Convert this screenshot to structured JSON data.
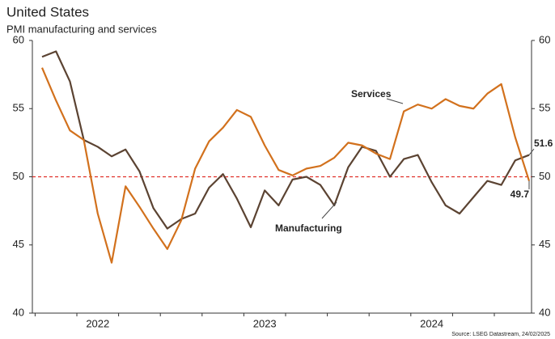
{
  "chart_data": {
    "type": "line",
    "title": "United States",
    "subtitle": "PMI manufacturing and services",
    "source": "Source: LSEG Datastream, 24/02/2025",
    "categories": [
      null,
      null,
      null,
      null,
      "2022",
      null,
      null,
      null,
      null,
      null,
      null,
      null,
      null,
      null,
      null,
      null,
      "2023",
      null,
      null,
      null,
      null,
      null,
      null,
      null,
      null,
      null,
      null,
      null,
      "2024",
      null,
      null,
      null,
      null,
      null,
      null,
      null
    ],
    "series": [
      {
        "name": "Manufacturing",
        "color": "#5b4332",
        "values": [
          58.8,
          59.2,
          57.0,
          52.7,
          52.2,
          51.5,
          52.0,
          50.4,
          47.7,
          46.2,
          46.9,
          47.3,
          49.2,
          50.2,
          48.4,
          46.3,
          49.0,
          47.9,
          49.8,
          50.0,
          49.4,
          47.9,
          50.7,
          52.2,
          51.9,
          50.0,
          51.3,
          51.6,
          49.6,
          47.9,
          47.3,
          48.5,
          49.7,
          49.4,
          51.2,
          51.6
        ]
      },
      {
        "name": "Services",
        "color": "#d2711d",
        "values": [
          58.0,
          55.6,
          53.4,
          52.7,
          47.3,
          43.7,
          49.3,
          47.8,
          46.2,
          44.7,
          46.8,
          50.6,
          52.6,
          53.6,
          54.9,
          54.4,
          52.3,
          50.5,
          50.1,
          50.6,
          50.8,
          51.4,
          52.5,
          52.3,
          51.7,
          51.3,
          54.8,
          55.3,
          55.0,
          55.7,
          55.2,
          55.0,
          56.1,
          56.8,
          52.9,
          49.7
        ]
      }
    ],
    "ylim": [
      40,
      60
    ],
    "yticks": [
      40,
      45,
      50,
      55,
      60
    ],
    "y2lim": [
      40,
      60
    ],
    "y2ticks": [
      40,
      45,
      50,
      55,
      60
    ],
    "reference_line": {
      "value": 50,
      "color": "#e0302a"
    }
  }
}
